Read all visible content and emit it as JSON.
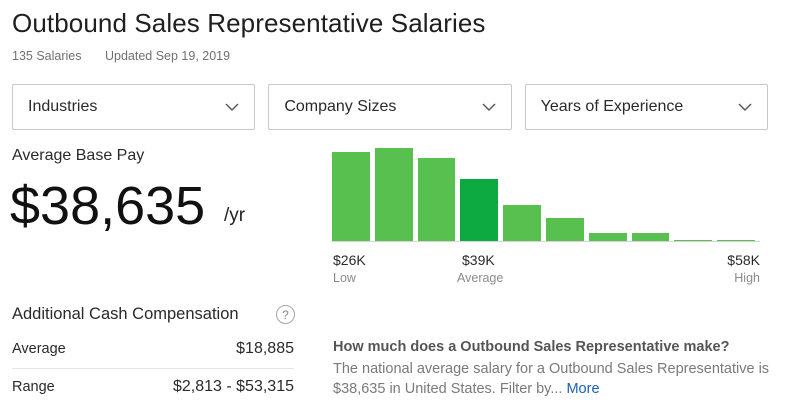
{
  "header": {
    "title": "Outbound Sales Representative Salaries",
    "salary_count": "135 Salaries",
    "updated": "Updated Sep 19, 2019"
  },
  "filters": [
    {
      "label": "Industries",
      "icon": "chevron-down-icon"
    },
    {
      "label": "Company Sizes",
      "icon": "chevron-down-icon"
    },
    {
      "label": "Years of Experience",
      "icon": "chevron-down-icon"
    }
  ],
  "base_pay": {
    "label": "Average Base Pay",
    "amount": "$38,635",
    "period": "/yr"
  },
  "colors": {
    "bar": "#57c04f",
    "bar_average": "#0caa41",
    "link": "#1861bf"
  },
  "chart_data": {
    "type": "bar",
    "values": [
      94,
      98,
      87,
      66,
      39,
      25,
      9,
      9,
      2,
      2
    ],
    "average_index": 3,
    "ylim": [
      0,
      100
    ],
    "ticks": [
      {
        "value": "$26K",
        "sub": "Low",
        "align": "left"
      },
      {
        "value": "$39K",
        "sub": "Average",
        "align": "center"
      },
      {
        "value": "$58K",
        "sub": "High",
        "align": "right"
      }
    ]
  },
  "additional_cash": {
    "label": "Additional Cash Compensation",
    "help_icon": "?",
    "rows": [
      {
        "label": "Average",
        "value": "$18,885"
      },
      {
        "label": "Range",
        "value": "$2,813 - $53,315"
      }
    ]
  },
  "faq": {
    "question": "How much does a Outbound Sales Representative make?",
    "answer": "The national average salary for a Outbound Sales Representative is $38,635 in United States. Filter by...",
    "more_label": "More"
  }
}
